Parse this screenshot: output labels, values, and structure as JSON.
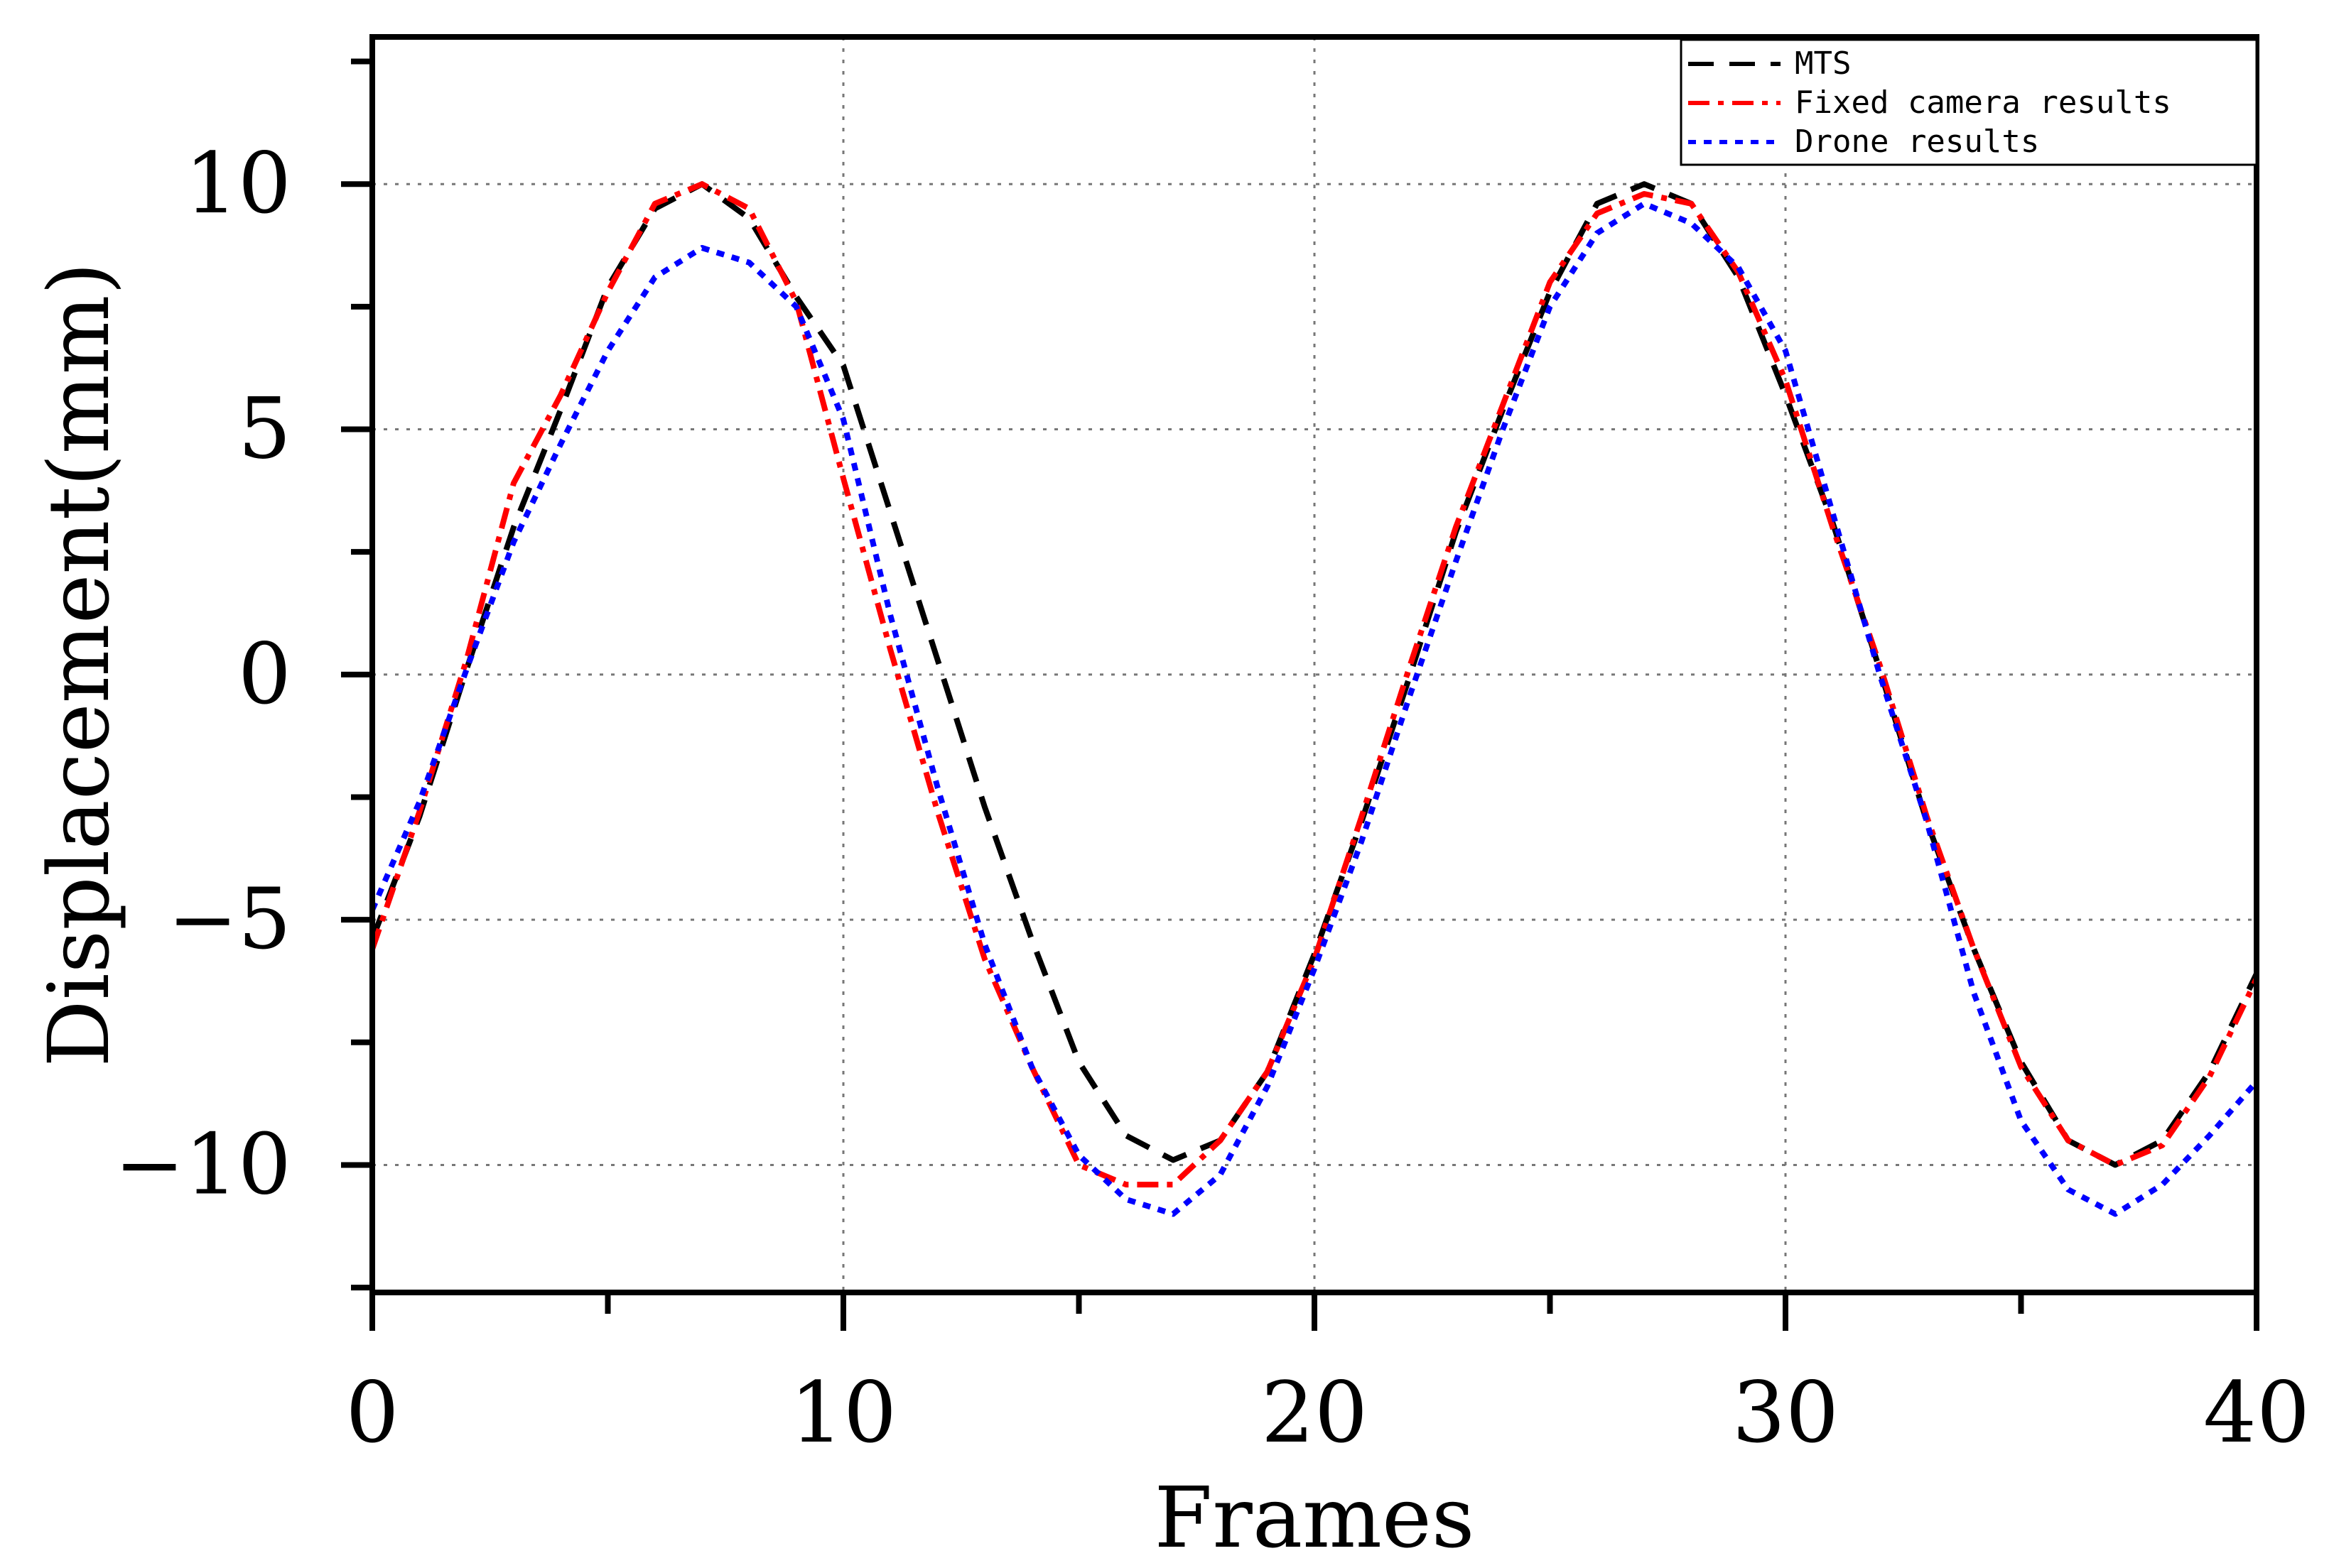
{
  "chart_data": {
    "type": "line",
    "title": "",
    "xlabel": "Frames",
    "ylabel": "Displacement(mm)",
    "xlim": [
      0,
      40
    ],
    "ylim": [
      -12.6,
      13
    ],
    "xticks": [
      0,
      10,
      20,
      30,
      40
    ],
    "xtick_labels": [
      "0",
      "10",
      "20",
      "30",
      "40"
    ],
    "yticks": [
      -10,
      -5,
      0,
      5,
      10
    ],
    "ytick_labels": [
      "−10",
      "−5",
      "0",
      "5",
      "10"
    ],
    "grid": true,
    "legend_position": "top-right",
    "series": [
      {
        "name": "MTS",
        "color": "#000000",
        "style": "dashed",
        "x": [
          0,
          1,
          2,
          3,
          4,
          5,
          6,
          7,
          8,
          9,
          10,
          11,
          12,
          13,
          14,
          15,
          16,
          17,
          18,
          19,
          20,
          21,
          22,
          23,
          24,
          25,
          26,
          27,
          28,
          29,
          30,
          31,
          32,
          33,
          34,
          35,
          36,
          37,
          38,
          39,
          40
        ],
        "y": [
          -5.4,
          -2.9,
          0.1,
          3.0,
          5.4,
          7.9,
          9.5,
          10.0,
          9.3,
          7.7,
          6.3,
          3.3,
          0.3,
          -2.7,
          -5.4,
          -7.9,
          -9.4,
          -9.9,
          -9.5,
          -8.1,
          -5.7,
          -3.0,
          -0.1,
          2.9,
          5.4,
          7.8,
          9.6,
          10.0,
          9.6,
          8.1,
          5.7,
          3.1,
          0.1,
          -3.0,
          -5.6,
          -7.9,
          -9.5,
          -10.0,
          -9.5,
          -8.1,
          -6.1
        ]
      },
      {
        "name": "Fixed camera results",
        "color": "#ff0000",
        "style": "dashdot",
        "x": [
          0,
          1,
          2,
          3,
          4,
          5,
          6,
          7,
          8,
          9,
          10,
          11,
          12,
          13,
          14,
          15,
          16,
          17,
          18,
          19,
          20,
          21,
          22,
          23,
          24,
          25,
          26,
          27,
          28,
          29,
          30,
          31,
          32,
          33,
          34,
          35,
          36,
          37,
          38,
          39,
          40
        ],
        "y": [
          -5.6,
          -2.8,
          0.3,
          3.9,
          5.7,
          7.8,
          9.6,
          10.0,
          9.5,
          7.6,
          4.0,
          0.5,
          -2.8,
          -5.8,
          -8.0,
          -10.0,
          -10.4,
          -10.4,
          -9.5,
          -8.1,
          -5.8,
          -2.9,
          0.1,
          3.0,
          5.5,
          8.0,
          9.4,
          9.8,
          9.6,
          8.2,
          6.0,
          3.0,
          0.2,
          -2.9,
          -5.6,
          -8.0,
          -9.5,
          -10.0,
          -9.6,
          -8.2,
          -6.2
        ]
      },
      {
        "name": "Drone results",
        "color": "#0000ff",
        "style": "dotted",
        "x": [
          0,
          1,
          2,
          3,
          4,
          5,
          6,
          7,
          8,
          9,
          10,
          11,
          12,
          13,
          14,
          15,
          16,
          17,
          18,
          19,
          20,
          21,
          22,
          23,
          24,
          25,
          26,
          27,
          28,
          29,
          30,
          31,
          32,
          33,
          34,
          35,
          36,
          37,
          38,
          39,
          40
        ],
        "y": [
          -4.8,
          -2.6,
          0.1,
          2.7,
          4.7,
          6.6,
          8.1,
          8.7,
          8.4,
          7.5,
          5.2,
          1.2,
          -2.3,
          -5.5,
          -8.0,
          -9.8,
          -10.7,
          -11.0,
          -10.2,
          -8.4,
          -6.0,
          -3.4,
          -0.5,
          2.3,
          5.0,
          7.5,
          9.0,
          9.6,
          9.2,
          8.3,
          6.6,
          3.3,
          0.0,
          -3.0,
          -6.5,
          -9.1,
          -10.5,
          -11.0,
          -10.4,
          -9.4,
          -8.3
        ]
      }
    ]
  }
}
